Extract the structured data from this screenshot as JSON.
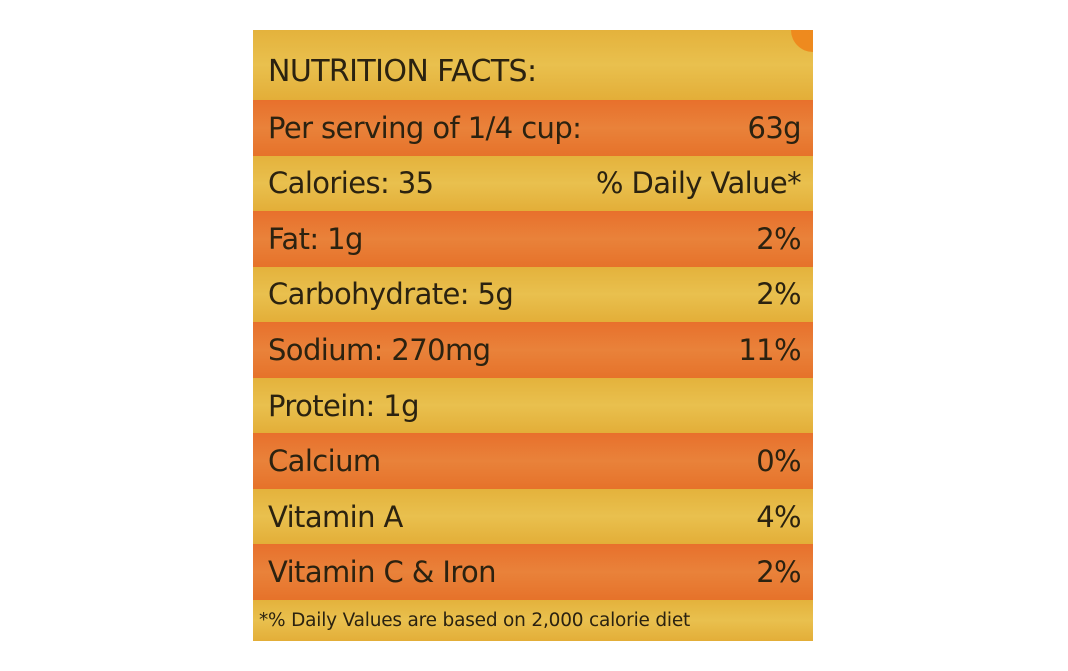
{
  "label": {
    "title": "NUTRITION FACTS:",
    "rows": [
      [
        "Per serving of 1/4 cup:",
        "63g"
      ],
      [
        "Calories: 35",
        "% Daily Value*"
      ],
      [
        "Fat: 1g",
        "2%"
      ],
      [
        "Carbohydrate: 5g",
        "2%"
      ],
      [
        "Sodium: 270mg",
        "11%"
      ],
      [
        "Protein: 1g"
      ],
      [
        "Calcium",
        "0%"
      ],
      [
        "Vitamin A",
        "4%"
      ],
      [
        "Vitamin C & Iron",
        "2%"
      ]
    ],
    "footnote": "*% Daily Values are based on 2,000 calorie diet"
  }
}
